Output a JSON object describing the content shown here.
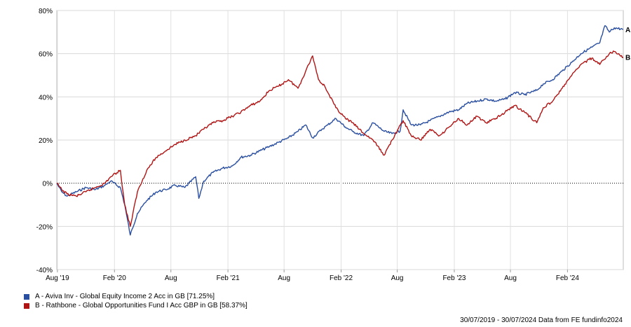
{
  "chart_data": {
    "type": "line",
    "title": "",
    "xlabel": "",
    "ylabel": "",
    "ylim": [
      -40,
      80
    ],
    "yticks": [
      "80%",
      "60%",
      "40%",
      "20%",
      "0%",
      "-20%",
      "-40%"
    ],
    "ytick_values": [
      80,
      60,
      40,
      20,
      0,
      -20,
      -40
    ],
    "xticks": [
      "Aug '19",
      "Feb '20",
      "Aug",
      "Feb '21",
      "Aug",
      "Feb '22",
      "Aug",
      "Feb '23",
      "Aug",
      "Feb '24"
    ],
    "xtick_dates": [
      "2019-08-01",
      "2020-02-01",
      "2020-08-01",
      "2021-02-01",
      "2021-08-01",
      "2022-02-01",
      "2022-08-01",
      "2023-02-01",
      "2023-08-01",
      "2024-02-01"
    ],
    "xlim": [
      "2019-07-30",
      "2024-07-30"
    ],
    "grid": true,
    "zero_line": "dotted",
    "series": [
      {
        "name": "A - Aviva Inv - Global Equity Income 2 Acc in GB [71.25%]",
        "end_label": "A",
        "color": "#2a4fa0",
        "x": [
          "2019-07-30",
          "2019-08-15",
          "2019-09-01",
          "2019-10-01",
          "2019-11-01",
          "2019-12-01",
          "2020-01-01",
          "2020-01-20",
          "2020-02-20",
          "2020-03-05",
          "2020-03-23",
          "2020-04-15",
          "2020-05-15",
          "2020-06-15",
          "2020-07-15",
          "2020-08-15",
          "2020-09-15",
          "2020-10-20",
          "2020-10-30",
          "2020-11-15",
          "2020-12-15",
          "2021-01-15",
          "2021-02-15",
          "2021-03-15",
          "2021-04-15",
          "2021-05-15",
          "2021-06-15",
          "2021-07-15",
          "2021-08-15",
          "2021-09-15",
          "2021-10-10",
          "2021-11-01",
          "2021-12-01",
          "2021-12-20",
          "2022-01-15",
          "2022-02-15",
          "2022-03-10",
          "2022-04-15",
          "2022-05-15",
          "2022-06-20",
          "2022-07-15",
          "2022-08-10",
          "2022-08-20",
          "2022-09-15",
          "2022-10-15",
          "2022-11-15",
          "2022-12-15",
          "2023-01-15",
          "2023-02-15",
          "2023-03-15",
          "2023-04-15",
          "2023-05-15",
          "2023-06-15",
          "2023-07-15",
          "2023-08-15",
          "2023-09-15",
          "2023-10-25",
          "2023-11-15",
          "2023-12-15",
          "2024-01-15",
          "2024-02-15",
          "2024-03-15",
          "2024-04-20",
          "2024-05-15",
          "2024-06-01",
          "2024-06-15",
          "2024-07-01",
          "2024-07-30"
        ],
        "values": [
          0,
          -4,
          -6,
          -4,
          -2,
          -3,
          -1,
          1,
          -2,
          -10,
          -24,
          -14,
          -8,
          -4,
          -3,
          -1,
          -2,
          3,
          -7,
          1,
          5,
          7,
          8,
          12,
          13,
          15,
          17,
          19,
          21,
          24,
          27,
          21,
          25,
          27,
          30,
          26,
          24,
          22,
          28,
          24,
          23,
          24,
          34,
          27,
          27,
          29,
          31,
          33,
          34,
          37,
          38,
          39,
          38,
          39,
          42,
          41,
          43,
          46,
          48,
          52,
          56,
          60,
          63,
          65,
          73,
          70,
          72,
          71.25
        ]
      },
      {
        "name": "B - Rathbone - Global Opportunities Fund I Acc GBP in GB [58.37%]",
        "end_label": "B",
        "color": "#b01515",
        "x": [
          "2019-07-30",
          "2019-08-15",
          "2019-09-01",
          "2019-10-01",
          "2019-11-01",
          "2019-12-01",
          "2020-01-01",
          "2020-01-20",
          "2020-02-20",
          "2020-03-05",
          "2020-03-23",
          "2020-04-15",
          "2020-05-15",
          "2020-06-15",
          "2020-07-15",
          "2020-08-15",
          "2020-09-15",
          "2020-10-20",
          "2020-11-15",
          "2020-12-15",
          "2021-01-15",
          "2021-02-15",
          "2021-03-15",
          "2021-04-15",
          "2021-05-15",
          "2021-06-15",
          "2021-07-15",
          "2021-08-15",
          "2021-09-15",
          "2021-10-10",
          "2021-11-01",
          "2021-11-20",
          "2021-12-10",
          "2022-01-15",
          "2022-02-15",
          "2022-03-10",
          "2022-04-15",
          "2022-05-15",
          "2022-06-20",
          "2022-07-15",
          "2022-08-20",
          "2022-09-15",
          "2022-10-15",
          "2022-11-15",
          "2022-12-15",
          "2023-01-15",
          "2023-02-15",
          "2023-03-15",
          "2023-04-15",
          "2023-05-15",
          "2023-06-15",
          "2023-07-15",
          "2023-08-15",
          "2023-09-15",
          "2023-10-25",
          "2023-11-15",
          "2023-12-15",
          "2024-01-15",
          "2024-02-15",
          "2024-03-15",
          "2024-04-20",
          "2024-05-15",
          "2024-06-15",
          "2024-07-01",
          "2024-07-30"
        ],
        "values": [
          0,
          -3,
          -5,
          -6,
          -4,
          -2,
          0,
          3,
          6,
          -10,
          -20,
          -4,
          6,
          12,
          15,
          18,
          20,
          22,
          25,
          28,
          29,
          31,
          33,
          36,
          38,
          43,
          45,
          48,
          44,
          52,
          59,
          48,
          45,
          35,
          30,
          28,
          23,
          20,
          13,
          20,
          29,
          22,
          20,
          25,
          22,
          26,
          30,
          27,
          31,
          28,
          30,
          33,
          36,
          33,
          28,
          35,
          38,
          44,
          50,
          55,
          58,
          55,
          60,
          61,
          58.37
        ]
      }
    ],
    "legend_position": "bottom-left",
    "footer_note": "30/07/2019 - 30/07/2024 Data from FE fundinfo2024"
  }
}
